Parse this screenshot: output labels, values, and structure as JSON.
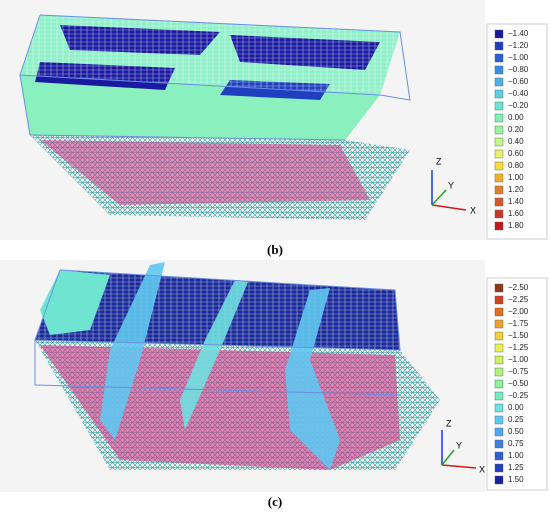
{
  "panels": [
    {
      "label": "(b)",
      "axes": [
        "Z",
        "Y",
        "X"
      ],
      "legend": [
        {
          "text": "−1.40",
          "color": "#1a1aa0"
        },
        {
          "text": "−1.20",
          "color": "#1f3fc0"
        },
        {
          "text": "−1.00",
          "color": "#2a62d8"
        },
        {
          "text": "−0.80",
          "color": "#3a8ce0"
        },
        {
          "text": "−0.60",
          "color": "#4cb3e6"
        },
        {
          "text": "−0.40",
          "color": "#5fd0e0"
        },
        {
          "text": "−0.20",
          "color": "#6fe4d0"
        },
        {
          "text": "0.00",
          "color": "#7ef0b8"
        },
        {
          "text": "0.20",
          "color": "#9af5a0"
        },
        {
          "text": "0.40",
          "color": "#c0f58a"
        },
        {
          "text": "0.60",
          "color": "#e6f070"
        },
        {
          "text": "0.80",
          "color": "#f2dc40"
        },
        {
          "text": "1.00",
          "color": "#f0b030"
        },
        {
          "text": "1.20",
          "color": "#e08030"
        },
        {
          "text": "1.40",
          "color": "#d05a2a"
        },
        {
          "text": "1.60",
          "color": "#c83a2a"
        },
        {
          "text": "1.80",
          "color": "#c01a1a"
        }
      ]
    },
    {
      "label": "(c)",
      "axes": [
        "Z",
        "Y",
        "X"
      ],
      "legend": [
        {
          "text": "−2.50",
          "color": "#8b3a1a"
        },
        {
          "text": "−2.25",
          "color": "#d04020"
        },
        {
          "text": "−2.00",
          "color": "#e07020"
        },
        {
          "text": "−1.75",
          "color": "#f0a030"
        },
        {
          "text": "−1.50",
          "color": "#f0d040"
        },
        {
          "text": "−1.25",
          "color": "#e8f050"
        },
        {
          "text": "−1.00",
          "color": "#d0f060"
        },
        {
          "text": "−0.75",
          "color": "#b0f080"
        },
        {
          "text": "−0.50",
          "color": "#90f0a0"
        },
        {
          "text": "−0.25",
          "color": "#78eac0"
        },
        {
          "text": "0.00",
          "color": "#70e0e0"
        },
        {
          "text": "0.25",
          "color": "#60c8f0"
        },
        {
          "text": "0.50",
          "color": "#50a8f0"
        },
        {
          "text": "0.75",
          "color": "#4080e0"
        },
        {
          "text": "1.00",
          "color": "#3060d0"
        },
        {
          "text": "1.25",
          "color": "#2040c0"
        },
        {
          "text": "1.50",
          "color": "#1a20a0"
        }
      ]
    }
  ]
}
